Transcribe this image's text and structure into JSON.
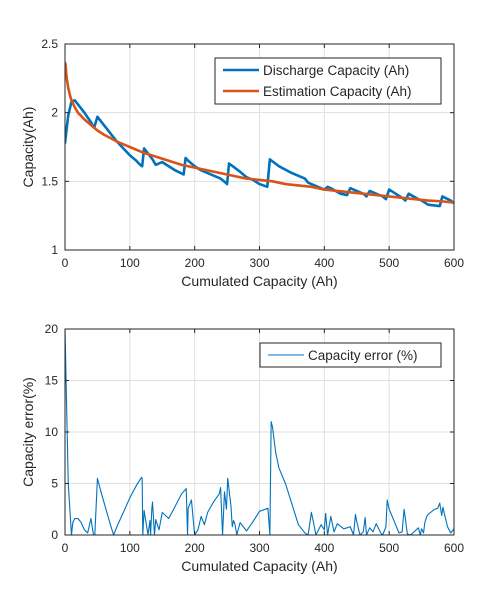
{
  "chart_data": [
    {
      "type": "line",
      "xlabel": "Cumulated Capacity (Ah)",
      "ylabel": "Capacity(Ah)",
      "xlim": [
        0,
        600
      ],
      "ylim": [
        1,
        2.5
      ],
      "xticks": [
        0,
        100,
        200,
        300,
        400,
        500,
        600
      ],
      "yticks": [
        1,
        1.5,
        2,
        2.5
      ],
      "ytick_labels": [
        "1",
        "1.5",
        "2",
        "2.5"
      ],
      "grid": true,
      "legend_position": "top-right",
      "series": [
        {
          "name": "Discharge Capacity (Ah)",
          "color": "#0072BD",
          "x": [
            0,
            5,
            10,
            15,
            20,
            30,
            40,
            45,
            50,
            60,
            70,
            80,
            90,
            100,
            110,
            116,
            119,
            122,
            135,
            140,
            150,
            160,
            170,
            183,
            186,
            190,
            200,
            210,
            220,
            235,
            240,
            248,
            250,
            253,
            270,
            280,
            290,
            300,
            312,
            316,
            330,
            350,
            370,
            375,
            380,
            390,
            400,
            405,
            410,
            425,
            435,
            440,
            450,
            460,
            465,
            470,
            490,
            495,
            500,
            520,
            525,
            530,
            545,
            550,
            560,
            578,
            582,
            595,
            600
          ],
          "y": [
            1.78,
            1.98,
            2.08,
            2.09,
            2.06,
            2.0,
            1.93,
            1.89,
            1.97,
            1.91,
            1.85,
            1.79,
            1.74,
            1.69,
            1.65,
            1.62,
            1.61,
            1.74,
            1.66,
            1.62,
            1.64,
            1.61,
            1.58,
            1.55,
            1.67,
            1.65,
            1.61,
            1.58,
            1.56,
            1.53,
            1.52,
            1.49,
            1.48,
            1.63,
            1.57,
            1.53,
            1.51,
            1.48,
            1.46,
            1.66,
            1.61,
            1.56,
            1.52,
            1.49,
            1.48,
            1.46,
            1.44,
            1.46,
            1.45,
            1.41,
            1.4,
            1.45,
            1.43,
            1.41,
            1.39,
            1.43,
            1.39,
            1.37,
            1.44,
            1.38,
            1.36,
            1.41,
            1.37,
            1.36,
            1.33,
            1.32,
            1.39,
            1.36,
            1.34
          ]
        },
        {
          "name": "Estimation Capacity (Ah)",
          "color": "#D95319",
          "x": [
            0.5,
            1,
            2,
            3,
            5,
            8,
            10,
            15,
            20,
            30,
            40,
            50,
            60,
            80,
            100,
            120,
            140,
            160,
            180,
            200,
            220,
            240,
            260,
            280,
            300,
            320,
            340,
            360,
            380,
            400,
            420,
            440,
            460,
            480,
            500,
            520,
            540,
            560,
            580,
            600
          ],
          "y": [
            2.36,
            2.34,
            2.28,
            2.24,
            2.18,
            2.12,
            2.09,
            2.04,
            2.0,
            1.95,
            1.91,
            1.87,
            1.84,
            1.79,
            1.75,
            1.71,
            1.68,
            1.65,
            1.62,
            1.6,
            1.58,
            1.56,
            1.54,
            1.52,
            1.51,
            1.5,
            1.48,
            1.47,
            1.46,
            1.44,
            1.43,
            1.42,
            1.41,
            1.4,
            1.39,
            1.38,
            1.37,
            1.36,
            1.355,
            1.345
          ]
        }
      ]
    },
    {
      "type": "line",
      "xlabel": "Cumulated Capacity (Ah)",
      "ylabel": "Capacity error(%)",
      "xlim": [
        0,
        600
      ],
      "ylim": [
        0,
        20
      ],
      "xticks": [
        0,
        100,
        200,
        300,
        400,
        500,
        600
      ],
      "yticks": [
        0,
        5,
        10,
        15,
        20
      ],
      "ytick_labels": [
        "0",
        "5",
        "10",
        "15",
        "20"
      ],
      "grid": true,
      "legend_position": "top-right",
      "series": [
        {
          "name": "Capacity error (%)",
          "color": "#0072BD",
          "x": [
            0,
            2,
            5,
            8,
            10,
            12,
            15,
            20,
            25,
            30,
            35,
            40,
            44,
            46,
            50,
            55,
            60,
            70,
            75,
            80,
            90,
            100,
            110,
            118,
            119,
            120,
            122,
            125,
            128,
            131,
            132,
            134,
            135,
            138,
            140,
            145,
            150,
            160,
            170,
            180,
            187,
            189,
            190,
            195,
            200,
            205,
            210,
            215,
            220,
            230,
            238,
            240,
            243,
            246,
            249,
            251,
            253,
            256,
            258,
            260,
            262,
            265,
            270,
            280,
            290,
            300,
            313,
            316,
            318,
            320,
            325,
            330,
            340,
            350,
            360,
            370,
            375,
            380,
            383,
            387,
            395,
            400,
            402,
            405,
            410,
            415,
            420,
            430,
            440,
            445,
            448,
            450,
            455,
            460,
            463,
            465,
            470,
            475,
            480,
            487,
            490,
            495,
            497,
            500,
            510,
            515,
            520,
            523,
            525,
            528,
            533,
            540,
            545,
            548,
            550,
            553,
            555,
            558,
            560,
            570,
            575,
            578,
            581,
            583,
            585,
            590,
            595,
            600
          ],
          "y": [
            20,
            14,
            5,
            2,
            0,
            1.2,
            1.6,
            1.6,
            1.2,
            0.5,
            0.2,
            1.6,
            0,
            0,
            5.5,
            4.3,
            3.2,
            1.0,
            0,
            0.8,
            2.2,
            3.6,
            4.8,
            5.6,
            5.5,
            0,
            2.4,
            1.2,
            0,
            1.4,
            0,
            2.6,
            3.2,
            0,
            1.5,
            0.5,
            2.2,
            1.6,
            2.8,
            4.0,
            4.5,
            0,
            2.6,
            3.4,
            0,
            0.5,
            1.8,
            1.0,
            2.2,
            3.3,
            4.0,
            4.6,
            0,
            4.2,
            2.5,
            5.5,
            4.4,
            2.8,
            0.8,
            1.4,
            1.1,
            0,
            1.2,
            0.4,
            1.3,
            2.3,
            2.6,
            0,
            11.0,
            10.5,
            8.0,
            6.5,
            5.0,
            3.0,
            1.0,
            0.2,
            0,
            2.2,
            1.3,
            0,
            1.0,
            0.5,
            2.1,
            0,
            1.8,
            0.3,
            1.1,
            0.6,
            0.8,
            0,
            2.0,
            1.3,
            0,
            0.3,
            1.7,
            0,
            0.7,
            0.3,
            1.1,
            0.2,
            0,
            0.8,
            3.4,
            2.5,
            1.0,
            0.2,
            0.3,
            2.5,
            1.6,
            0.1,
            0,
            0.4,
            0.7,
            0,
            0.6,
            0.2,
            1.2,
            1.8,
            2.0,
            2.5,
            2.6,
            3.1,
            1.9,
            2.7,
            2.1,
            0.8,
            0.2,
            0.6
          ]
        }
      ]
    }
  ]
}
